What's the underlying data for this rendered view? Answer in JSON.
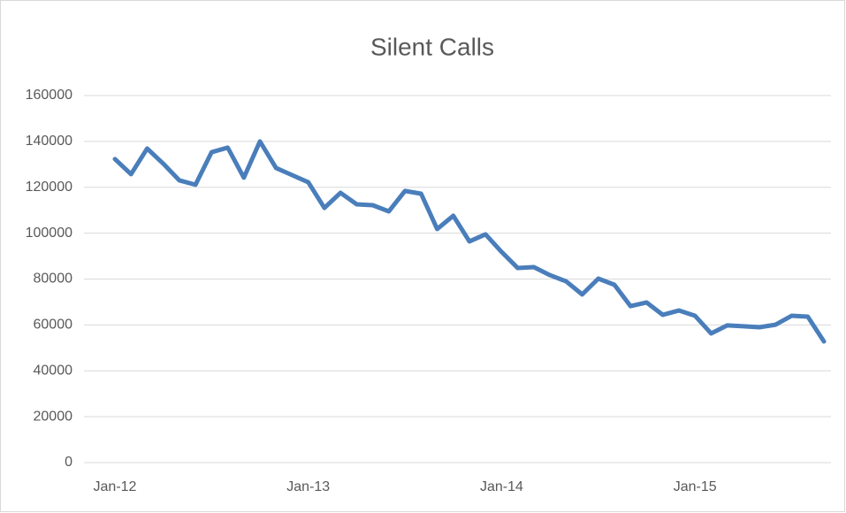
{
  "chart_data": {
    "type": "line",
    "title": "Silent Calls",
    "categories": [
      "Jan-12",
      null,
      null,
      null,
      null,
      null,
      null,
      null,
      null,
      null,
      null,
      null,
      "Jan-13",
      null,
      null,
      null,
      null,
      null,
      null,
      null,
      null,
      null,
      null,
      null,
      "Jan-14",
      null,
      null,
      null,
      null,
      null,
      null,
      null,
      null,
      null,
      null,
      null,
      "Jan-15",
      null,
      null,
      null,
      null,
      null,
      null,
      null,
      null
    ],
    "series": [
      {
        "name": "Silent Calls",
        "color": "#4a7ebb",
        "values": [
          132300,
          125700,
          136900,
          130300,
          123000,
          121100,
          135300,
          137300,
          124200,
          140000,
          128400,
          125300,
          122200,
          111000,
          117600,
          112600,
          112200,
          109500,
          118400,
          117200,
          101800,
          107600,
          96400,
          99500,
          91800,
          84800,
          85200,
          81700,
          79000,
          73300,
          80200,
          77500,
          68200,
          69800,
          64400,
          66300,
          64000,
          56300,
          59800,
          59400,
          59000,
          60100,
          64000,
          63600,
          52800
        ]
      }
    ],
    "ylim": [
      0,
      160000
    ],
    "yticks": [
      0,
      20000,
      40000,
      60000,
      80000,
      100000,
      120000,
      140000,
      160000
    ],
    "grid": true
  }
}
